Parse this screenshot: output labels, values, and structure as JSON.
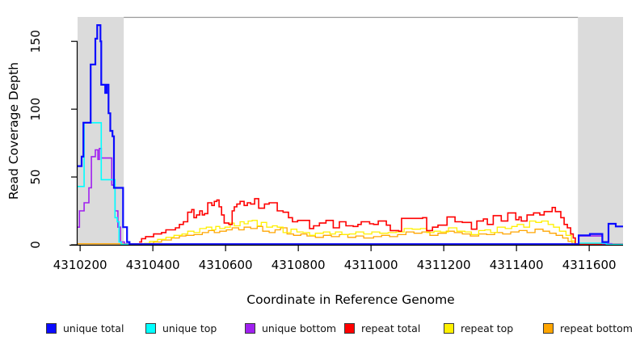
{
  "chart_data": {
    "type": "line",
    "subtype": "step-coverage-plot",
    "title": "",
    "xlabel": "Coordinate in Reference Genome",
    "ylabel": "Read Coverage Depth",
    "xlim": [
      4310193,
      4311693
    ],
    "ylim": [
      0,
      168
    ],
    "x_ticks": [
      4310200,
      4310400,
      4310600,
      4310800,
      4311000,
      4311200,
      4311400,
      4311600
    ],
    "y_ticks": [
      0,
      50,
      100,
      150
    ],
    "grid": false,
    "legend_position": "bottom",
    "axis_color": "#000000",
    "frame_color": "#999999",
    "band_color": "#DBDBDB",
    "shaded_regions": [
      {
        "x0": 4310193,
        "x1": 4310320
      },
      {
        "x0": 4311569,
        "x1": 4311693
      }
    ],
    "series": [
      {
        "name": "unique total",
        "color": "#0B0BFF",
        "line_width": 2.2,
        "points": [
          [
            4310193,
            58
          ],
          [
            4310204,
            65
          ],
          [
            4310209,
            90
          ],
          [
            4310229,
            133
          ],
          [
            4310242,
            152
          ],
          [
            4310247,
            162
          ],
          [
            4310256,
            150
          ],
          [
            4310258,
            118
          ],
          [
            4310269,
            112
          ],
          [
            4310273,
            118
          ],
          [
            4310278,
            97
          ],
          [
            4310283,
            84
          ],
          [
            4310289,
            80
          ],
          [
            4310293,
            42
          ],
          [
            4310318,
            13
          ],
          [
            4310329,
            2
          ],
          [
            4310336,
            0.5
          ],
          [
            4311571,
            7
          ],
          [
            4311602,
            8
          ],
          [
            4311636,
            2
          ],
          [
            4311653,
            15.5
          ],
          [
            4311673,
            13.5
          ],
          [
            4311693,
            13.5
          ]
        ]
      },
      {
        "name": "unique top",
        "color": "#00FFFF",
        "line_width": 1.6,
        "points": [
          [
            4310193,
            43
          ],
          [
            4310211,
            90
          ],
          [
            4310258,
            48
          ],
          [
            4310296,
            20
          ],
          [
            4310302,
            17
          ],
          [
            4310307,
            2
          ],
          [
            4310313,
            0.3
          ],
          [
            4311571,
            1.2
          ],
          [
            4311647,
            0.3
          ],
          [
            4311693,
            0.3
          ]
        ]
      },
      {
        "name": "unique bottom",
        "color": "#A020F0",
        "line_width": 1.6,
        "points": [
          [
            4310193,
            13
          ],
          [
            4310198,
            25
          ],
          [
            4310211,
            31
          ],
          [
            4310224,
            42
          ],
          [
            4310231,
            65
          ],
          [
            4310242,
            70
          ],
          [
            4310249,
            63
          ],
          [
            4310253,
            71
          ],
          [
            4310258,
            64
          ],
          [
            4310287,
            44
          ],
          [
            4310296,
            25
          ],
          [
            4310304,
            13
          ],
          [
            4310311,
            2
          ],
          [
            4310322,
            0.5
          ],
          [
            4311571,
            6.5
          ],
          [
            4311636,
            0.8
          ],
          [
            4311662,
            0.3
          ],
          [
            4311693,
            0.3
          ]
        ]
      },
      {
        "name": "repeat total",
        "color": "#FF0000",
        "line_width": 1.6,
        "points": [
          [
            4310362,
            2
          ],
          [
            4310369,
            4.5
          ],
          [
            4310380,
            6
          ],
          [
            4310402,
            8
          ],
          [
            4310424,
            9
          ],
          [
            4310436,
            11
          ],
          [
            4310462,
            12.5
          ],
          [
            4310473,
            15
          ],
          [
            4310484,
            17
          ],
          [
            4310496,
            24
          ],
          [
            4310507,
            26
          ],
          [
            4310513,
            20
          ],
          [
            4310520,
            22
          ],
          [
            4310529,
            25
          ],
          [
            4310536,
            22
          ],
          [
            4310542,
            23
          ],
          [
            4310551,
            31
          ],
          [
            4310562,
            29
          ],
          [
            4310569,
            32
          ],
          [
            4310576,
            33
          ],
          [
            4310582,
            28
          ],
          [
            4310589,
            22
          ],
          [
            4310596,
            16
          ],
          [
            4310609,
            15
          ],
          [
            4310618,
            25
          ],
          [
            4310624,
            28
          ],
          [
            4310631,
            30
          ],
          [
            4310640,
            32
          ],
          [
            4310651,
            29
          ],
          [
            4310660,
            31
          ],
          [
            4310669,
            30
          ],
          [
            4310680,
            34
          ],
          [
            4310691,
            27
          ],
          [
            4310707,
            30
          ],
          [
            4310720,
            31
          ],
          [
            4310742,
            25
          ],
          [
            4310758,
            24
          ],
          [
            4310773,
            20
          ],
          [
            4310784,
            17
          ],
          [
            4310798,
            18
          ],
          [
            4310831,
            12
          ],
          [
            4310842,
            14
          ],
          [
            4310858,
            16
          ],
          [
            4310876,
            18
          ],
          [
            4310896,
            12.5
          ],
          [
            4310913,
            17
          ],
          [
            4310931,
            14
          ],
          [
            4310951,
            13.5
          ],
          [
            4310964,
            15
          ],
          [
            4310973,
            17
          ],
          [
            4310996,
            15.5
          ],
          [
            4311007,
            15
          ],
          [
            4311020,
            17.5
          ],
          [
            4311042,
            14.5
          ],
          [
            4311053,
            10.5
          ],
          [
            4311076,
            10
          ],
          [
            4311084,
            19.5
          ],
          [
            4311142,
            20
          ],
          [
            4311153,
            10.5
          ],
          [
            4311169,
            13
          ],
          [
            4311184,
            14.5
          ],
          [
            4311209,
            20.5
          ],
          [
            4311231,
            17
          ],
          [
            4311251,
            16.5
          ],
          [
            4311276,
            11.5
          ],
          [
            4311291,
            17.5
          ],
          [
            4311309,
            19
          ],
          [
            4311320,
            15
          ],
          [
            4311336,
            21.5
          ],
          [
            4311358,
            17.5
          ],
          [
            4311376,
            23.5
          ],
          [
            4311398,
            18.5
          ],
          [
            4311407,
            20.5
          ],
          [
            4311413,
            17.5
          ],
          [
            4311429,
            22
          ],
          [
            4311447,
            23.5
          ],
          [
            4311464,
            22
          ],
          [
            4311476,
            24.5
          ],
          [
            4311498,
            27.5
          ],
          [
            4311507,
            24.5
          ],
          [
            4311522,
            20
          ],
          [
            4311531,
            15
          ],
          [
            4311540,
            12.5
          ],
          [
            4311549,
            8
          ],
          [
            4311556,
            5
          ],
          [
            4311562,
            0.5
          ],
          [
            4311693,
            0.5
          ]
        ]
      },
      {
        "name": "repeat top",
        "color": "#FFF000",
        "line_width": 1.3,
        "points": [
          [
            4310376,
            1
          ],
          [
            4310391,
            2.5
          ],
          [
            4310413,
            4
          ],
          [
            4310436,
            5.5
          ],
          [
            4310458,
            7
          ],
          [
            4310480,
            8
          ],
          [
            4310496,
            10
          ],
          [
            4310513,
            9
          ],
          [
            4310529,
            12
          ],
          [
            4310547,
            13
          ],
          [
            4310562,
            11
          ],
          [
            4310573,
            13.5
          ],
          [
            4310584,
            12
          ],
          [
            4310598,
            13
          ],
          [
            4310613,
            16
          ],
          [
            4310624,
            14
          ],
          [
            4310640,
            17
          ],
          [
            4310651,
            15.5
          ],
          [
            4310662,
            17.5
          ],
          [
            4310673,
            18
          ],
          [
            4310687,
            14
          ],
          [
            4310698,
            16.5
          ],
          [
            4310713,
            13
          ],
          [
            4310729,
            14
          ],
          [
            4310742,
            13
          ],
          [
            4310758,
            9
          ],
          [
            4310780,
            11.5
          ],
          [
            4310796,
            9.5
          ],
          [
            4310813,
            9
          ],
          [
            4310831,
            7
          ],
          [
            4310847,
            8.5
          ],
          [
            4310869,
            9.5
          ],
          [
            4310887,
            8
          ],
          [
            4310902,
            9.5
          ],
          [
            4310920,
            7.5
          ],
          [
            4310940,
            8
          ],
          [
            4310958,
            9.5
          ],
          [
            4310980,
            8
          ],
          [
            4311002,
            9.5
          ],
          [
            4311024,
            8.5
          ],
          [
            4311047,
            9
          ],
          [
            4311069,
            9.5
          ],
          [
            4311091,
            12
          ],
          [
            4311113,
            11.5
          ],
          [
            4311136,
            12
          ],
          [
            4311153,
            9
          ],
          [
            4311173,
            10
          ],
          [
            4311191,
            9.5
          ],
          [
            4311213,
            12.5
          ],
          [
            4311236,
            10
          ],
          [
            4311258,
            9.5
          ],
          [
            4311276,
            7.5
          ],
          [
            4311296,
            10.5
          ],
          [
            4311313,
            11
          ],
          [
            4311329,
            9
          ],
          [
            4311347,
            13
          ],
          [
            4311369,
            12
          ],
          [
            4311387,
            13.5
          ],
          [
            4311402,
            15
          ],
          [
            4311420,
            13
          ],
          [
            4311436,
            17.5
          ],
          [
            4311453,
            16.5
          ],
          [
            4311469,
            17.5
          ],
          [
            4311487,
            15
          ],
          [
            4311502,
            13
          ],
          [
            4311518,
            10
          ],
          [
            4311536,
            7
          ],
          [
            4311551,
            3
          ],
          [
            4311558,
            0.3
          ],
          [
            4311565,
            0.3
          ]
        ]
      },
      {
        "name": "repeat bottom",
        "color": "#FFA500",
        "line_width": 1.3,
        "points": [
          [
            4310193,
            0.7
          ],
          [
            4310390,
            1
          ],
          [
            4310402,
            2
          ],
          [
            4310424,
            3.5
          ],
          [
            4310451,
            5
          ],
          [
            4310473,
            6.5
          ],
          [
            4310491,
            7
          ],
          [
            4310513,
            7.5
          ],
          [
            4310536,
            9
          ],
          [
            4310553,
            10.5
          ],
          [
            4310569,
            9
          ],
          [
            4310584,
            10
          ],
          [
            4310602,
            11
          ],
          [
            4310618,
            12.5
          ],
          [
            4310636,
            11
          ],
          [
            4310651,
            13
          ],
          [
            4310669,
            12
          ],
          [
            4310687,
            13.5
          ],
          [
            4310702,
            10
          ],
          [
            4310720,
            9
          ],
          [
            4310736,
            11
          ],
          [
            4310751,
            12.5
          ],
          [
            4310769,
            8
          ],
          [
            4310787,
            7
          ],
          [
            4310807,
            8
          ],
          [
            4310824,
            6.5
          ],
          [
            4310847,
            5.5
          ],
          [
            4310869,
            7
          ],
          [
            4310891,
            6
          ],
          [
            4310913,
            7.5
          ],
          [
            4310936,
            5.5
          ],
          [
            4310958,
            6.5
          ],
          [
            4310980,
            5
          ],
          [
            4311007,
            6
          ],
          [
            4311029,
            7
          ],
          [
            4311051,
            6
          ],
          [
            4311073,
            7.5
          ],
          [
            4311096,
            9.5
          ],
          [
            4311118,
            8.5
          ],
          [
            4311140,
            9.5
          ],
          [
            4311162,
            7
          ],
          [
            4311184,
            8.5
          ],
          [
            4311207,
            10
          ],
          [
            4311229,
            9
          ],
          [
            4311251,
            8
          ],
          [
            4311273,
            6.5
          ],
          [
            4311296,
            8
          ],
          [
            4311318,
            7.5
          ],
          [
            4311340,
            9
          ],
          [
            4311362,
            8
          ],
          [
            4311384,
            9.5
          ],
          [
            4311407,
            10.5
          ],
          [
            4311429,
            9
          ],
          [
            4311451,
            11.5
          ],
          [
            4311473,
            10
          ],
          [
            4311491,
            8.5
          ],
          [
            4311509,
            7
          ],
          [
            4311527,
            5
          ],
          [
            4311542,
            2.5
          ],
          [
            4311553,
            0.8
          ],
          [
            4311647,
            0.8
          ],
          [
            4311655,
            0.2
          ],
          [
            4311693,
            0.2
          ]
        ]
      }
    ]
  }
}
